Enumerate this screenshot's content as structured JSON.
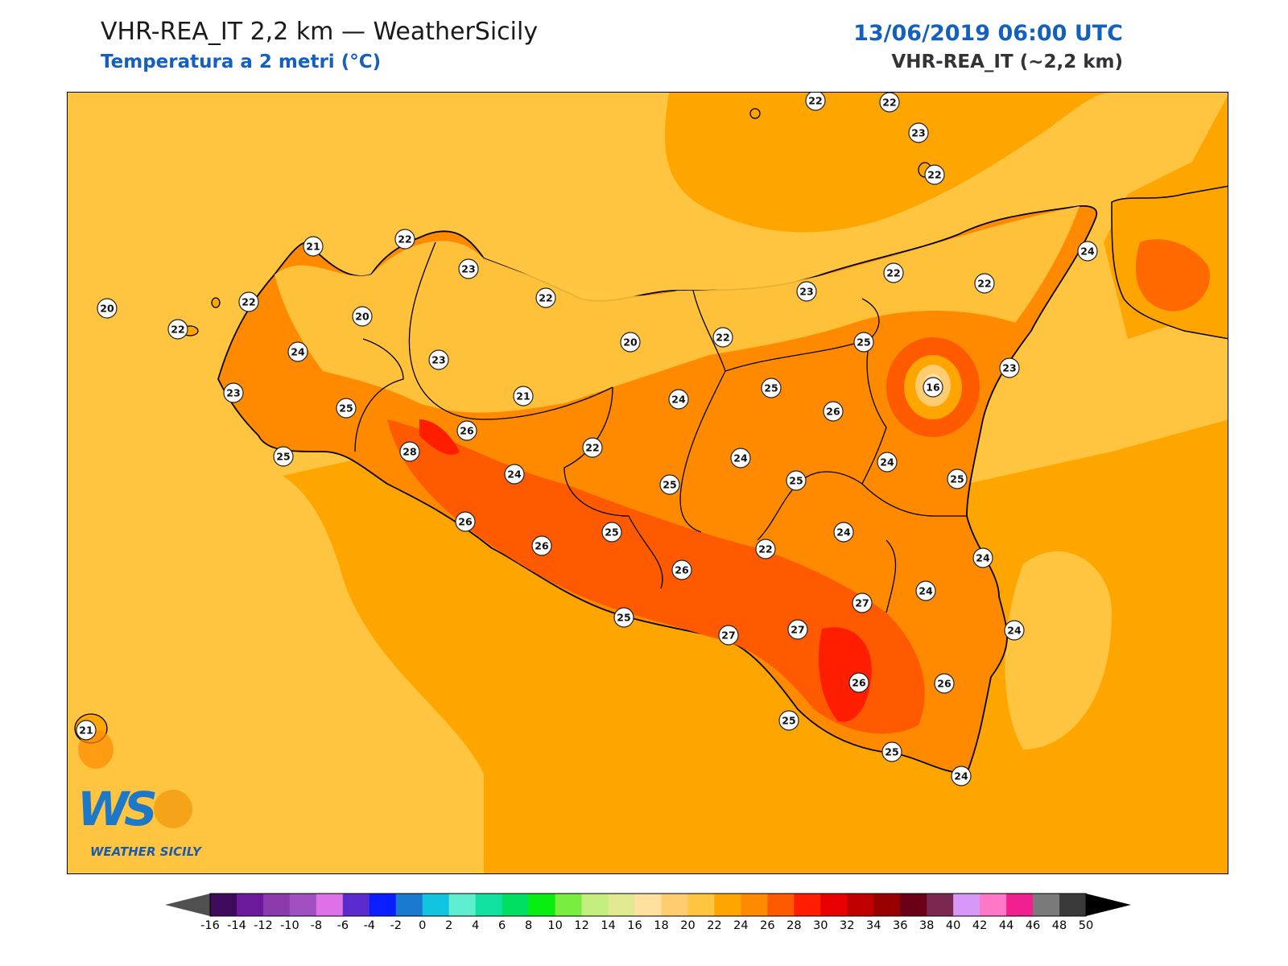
{
  "header": {
    "title": "VHR-REA_IT 2,2 km — WeatherSicily",
    "subtitle": "Temperatura a 2 metri (°C)",
    "datetime": "13/06/2019 06:00 UTC",
    "model": "VHR-REA_IT (~2,2 km)"
  },
  "logo": {
    "letters": "WS",
    "name": "WEATHER SICILY"
  },
  "map": {
    "variable": "Temperatura a 2 metri (°C)",
    "station_values": [
      {
        "id": "ustica-nw",
        "value": "22"
      },
      {
        "id": "alicudi",
        "value": "22"
      },
      {
        "id": "lipari",
        "value": "23"
      },
      {
        "id": "vulcano",
        "value": "22"
      },
      {
        "id": "san-vito",
        "value": "21"
      },
      {
        "id": "palermo-coast",
        "value": "22"
      },
      {
        "id": "palermo-hills",
        "value": "23"
      },
      {
        "id": "termini",
        "value": "22"
      },
      {
        "id": "marettimo",
        "value": "20"
      },
      {
        "id": "levanzo",
        "value": "22"
      },
      {
        "id": "trapani-n",
        "value": "22"
      },
      {
        "id": "erice",
        "value": "20"
      },
      {
        "id": "trapani-inland",
        "value": "24"
      },
      {
        "id": "marsala",
        "value": "23"
      },
      {
        "id": "salemi",
        "value": "25"
      },
      {
        "id": "mazara",
        "value": "25"
      },
      {
        "id": "corleone",
        "value": "23"
      },
      {
        "id": "madonie-w",
        "value": "20"
      },
      {
        "id": "cefalu-inland",
        "value": "22"
      },
      {
        "id": "bisacquino",
        "value": "21"
      },
      {
        "id": "santa-margherita",
        "value": "26"
      },
      {
        "id": "castelvetrano",
        "value": "28"
      },
      {
        "id": "sciacca-inland",
        "value": "24"
      },
      {
        "id": "sciacca",
        "value": "26"
      },
      {
        "id": "ribera",
        "value": "26"
      },
      {
        "id": "cammarata",
        "value": "22"
      },
      {
        "id": "petralia",
        "value": "24"
      },
      {
        "id": "caltanissetta",
        "value": "25"
      },
      {
        "id": "aragona",
        "value": "25"
      },
      {
        "id": "licata-inland",
        "value": "26"
      },
      {
        "id": "agrigento",
        "value": "25"
      },
      {
        "id": "licata",
        "value": "27"
      },
      {
        "id": "nebrodi",
        "value": "25"
      },
      {
        "id": "tortorici",
        "value": "25"
      },
      {
        "id": "troina",
        "value": "26"
      },
      {
        "id": "enna",
        "value": "24"
      },
      {
        "id": "leonforte",
        "value": "25"
      },
      {
        "id": "adrano",
        "value": "24"
      },
      {
        "id": "etna",
        "value": "16"
      },
      {
        "id": "capo-peloro",
        "value": "24"
      },
      {
        "id": "milazzo",
        "value": "22"
      },
      {
        "id": "patti",
        "value": "23"
      },
      {
        "id": "capo-orlando",
        "value": "22"
      },
      {
        "id": "taormina",
        "value": "23"
      },
      {
        "id": "catania",
        "value": "25"
      },
      {
        "id": "piazza-armerina",
        "value": "22"
      },
      {
        "id": "caltagirone",
        "value": "24"
      },
      {
        "id": "gela-inland",
        "value": "27"
      },
      {
        "id": "gela",
        "value": "27"
      },
      {
        "id": "augusta",
        "value": "24"
      },
      {
        "id": "palazzolo",
        "value": "24"
      },
      {
        "id": "siracusa",
        "value": "24"
      },
      {
        "id": "ragusa",
        "value": "26"
      },
      {
        "id": "noto",
        "value": "26"
      },
      {
        "id": "scoglitti",
        "value": "25"
      },
      {
        "id": "pozzallo",
        "value": "25"
      },
      {
        "id": "pachino",
        "value": "24"
      },
      {
        "id": "pantelleria",
        "value": "21"
      }
    ]
  },
  "colorbar": {
    "unit": "°C",
    "ticks": [
      "-16",
      "-14",
      "-12",
      "-10",
      "-8",
      "-6",
      "-4",
      "-2",
      "0",
      "2",
      "4",
      "6",
      "8",
      "10",
      "12",
      "14",
      "16",
      "18",
      "20",
      "22",
      "24",
      "26",
      "28",
      "30",
      "32",
      "34",
      "36",
      "38",
      "40",
      "42",
      "44",
      "46",
      "48",
      "50"
    ],
    "colors": [
      "#3d0a5c",
      "#6a1a9a",
      "#8a3aab",
      "#a050c0",
      "#e070e8",
      "#5a2acc",
      "#0a1eff",
      "#1a7ad0",
      "#10c4e0",
      "#60eed0",
      "#10e0a0",
      "#00e060",
      "#08ee10",
      "#7aee40",
      "#c4ee80",
      "#e0e890",
      "#ffe0a0",
      "#ffcc70",
      "#ffc540",
      "#ffa500",
      "#ff8a00",
      "#ff5a00",
      "#ff1e00",
      "#e80000",
      "#c00000",
      "#980000",
      "#6a0018",
      "#7a2850",
      "#d898f8",
      "#ff78c8",
      "#f02090",
      "#7a7a7a",
      "#3a3a3a"
    ],
    "under_color": "#505050",
    "over_color": "#000000"
  }
}
